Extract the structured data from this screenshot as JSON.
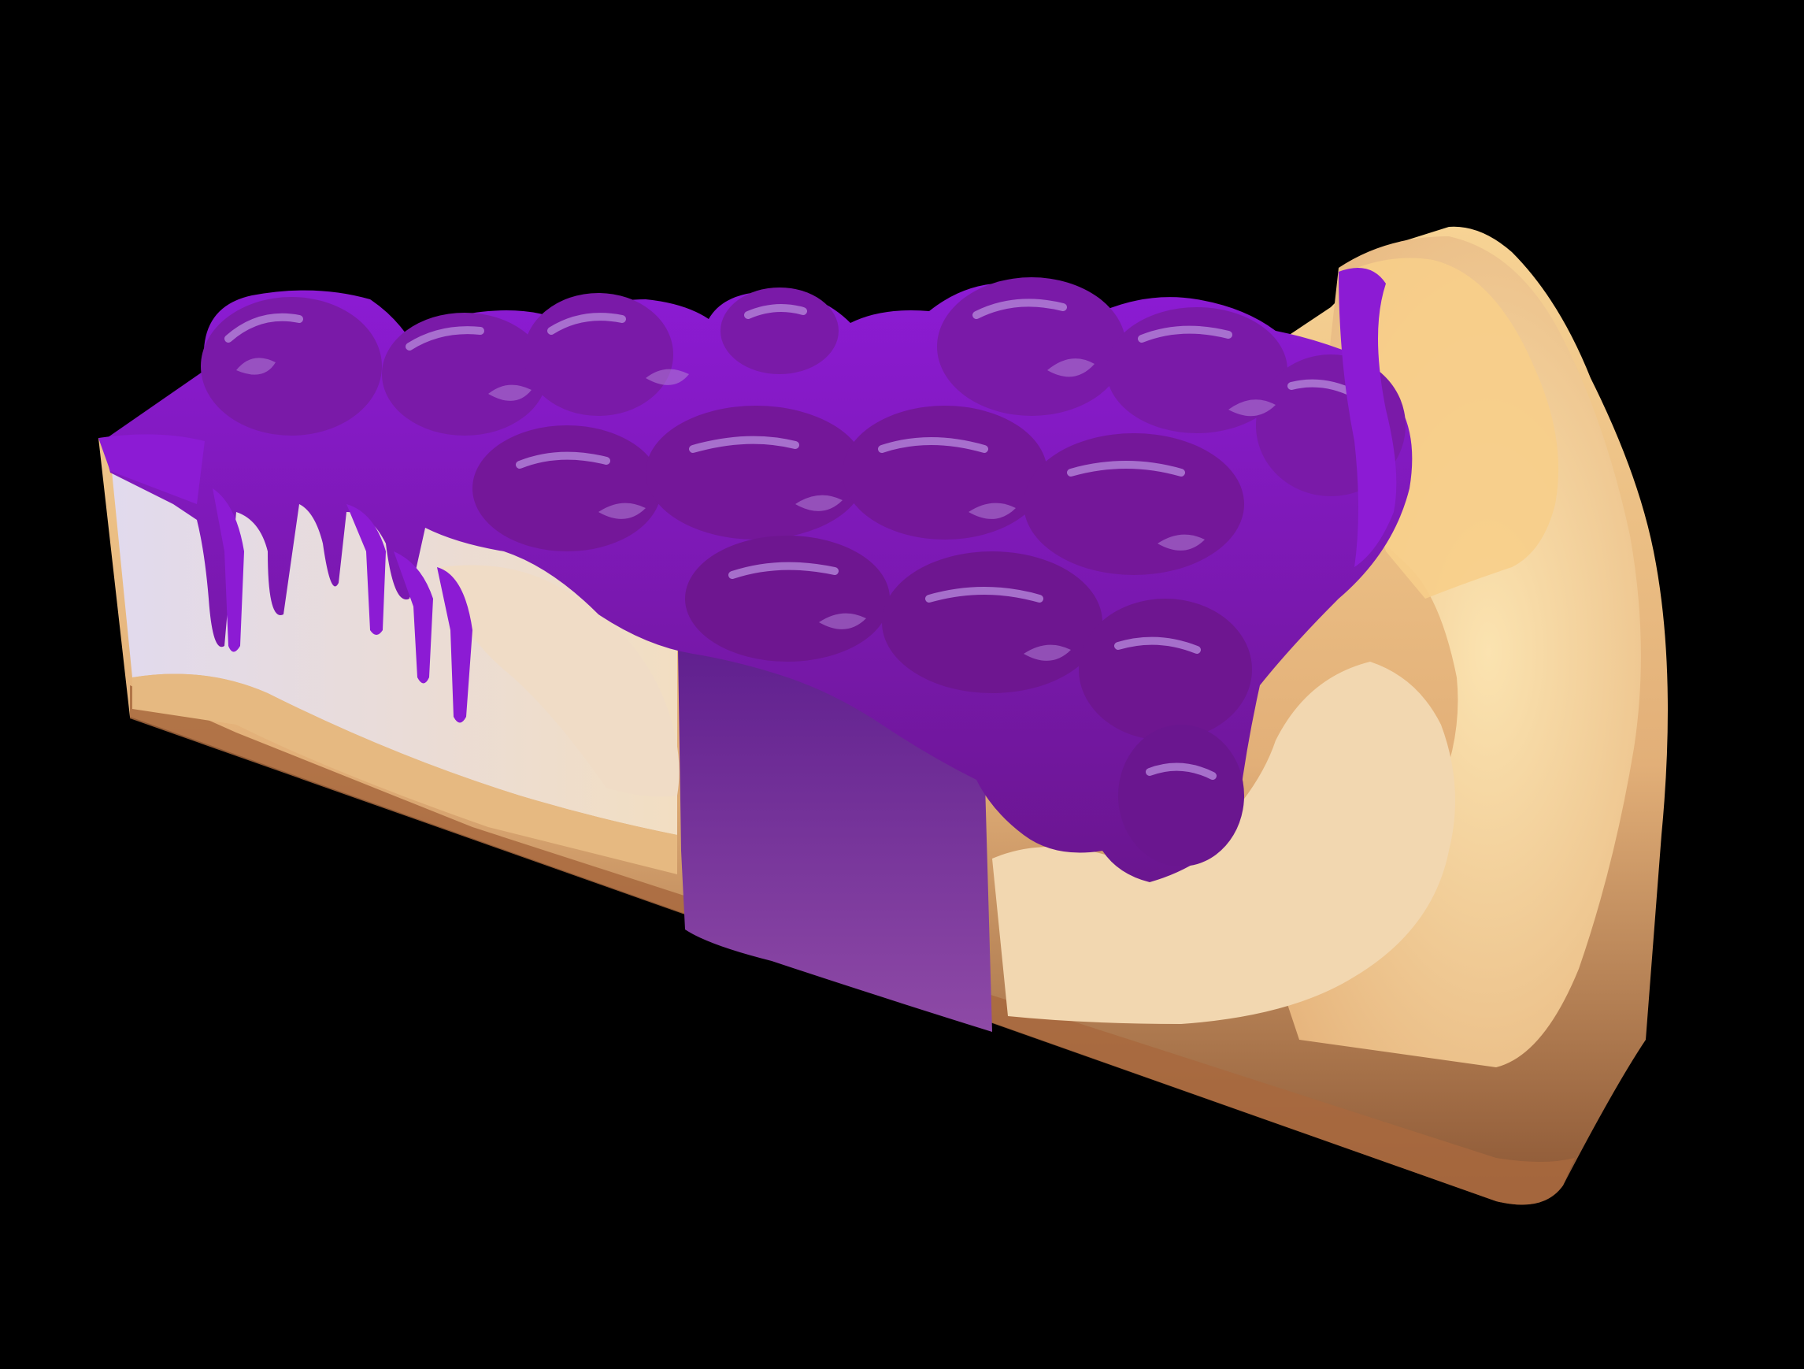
{
  "scene": {
    "subject": "pie-slice-illustration",
    "colors": {
      "background": "#000000",
      "crust_light": "#F7D394",
      "crust_mid": "#E2AF78",
      "crust_dark": "#8B5634",
      "cream_light": "#E7E2F2",
      "cream_warm": "#F2DEC2",
      "filling_dark": "#6A168F",
      "filling_bright": "#8C1BD4",
      "filling_highlight": "#B07FD6",
      "cut_face_purple": "#7E3B9C"
    }
  }
}
